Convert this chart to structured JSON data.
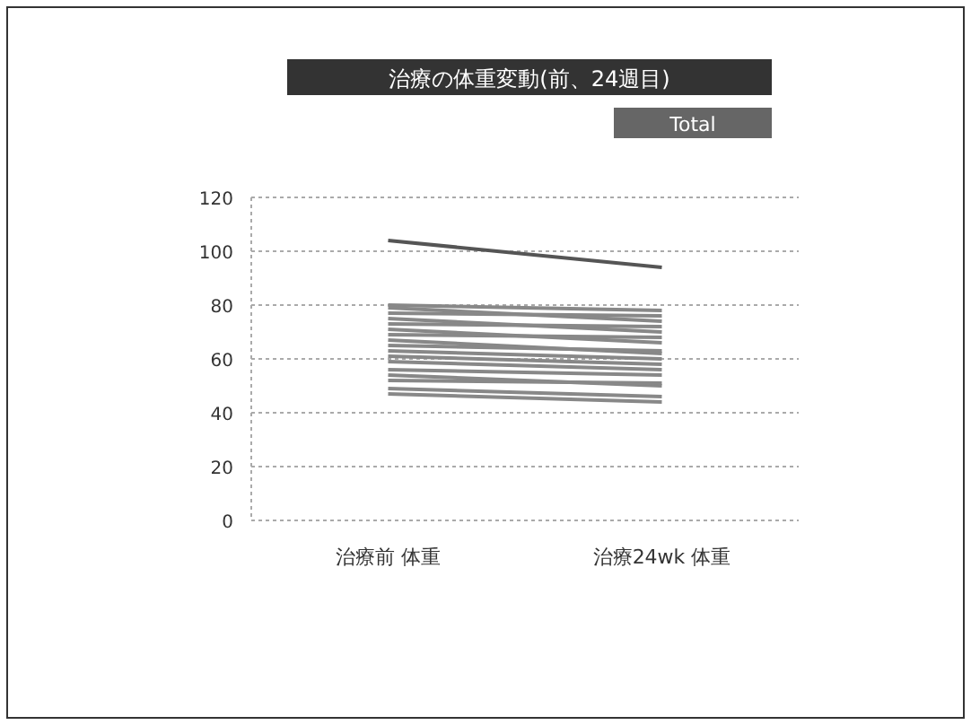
{
  "chart_data": {
    "type": "line",
    "title": "治療の体重変動(前、24週目)",
    "annotations": [
      "Total"
    ],
    "categories": [
      "治療前 体重",
      "治療24wk 体重"
    ],
    "ylim": [
      0,
      120
    ],
    "yticks": [
      0,
      20,
      40,
      60,
      80,
      100,
      120
    ],
    "grid": "y",
    "marker": "none",
    "line_style": "solid",
    "series": [
      {
        "color": "#555555",
        "values": [
          104,
          94
        ]
      },
      {
        "color": "#888888",
        "values": [
          80,
          78
        ]
      },
      {
        "color": "#888888",
        "values": [
          79,
          74
        ]
      },
      {
        "color": "#888888",
        "values": [
          77,
          76
        ]
      },
      {
        "color": "#888888",
        "values": [
          75,
          70
        ]
      },
      {
        "color": "#888888",
        "values": [
          73,
          72
        ]
      },
      {
        "color": "#888888",
        "values": [
          71,
          66
        ]
      },
      {
        "color": "#888888",
        "values": [
          69,
          68
        ]
      },
      {
        "color": "#888888",
        "values": [
          67,
          62
        ]
      },
      {
        "color": "#888888",
        "values": [
          65,
          63
        ]
      },
      {
        "color": "#888888",
        "values": [
          63,
          60
        ]
      },
      {
        "color": "#888888",
        "values": [
          61,
          58
        ]
      },
      {
        "color": "#888888",
        "values": [
          59,
          56
        ]
      },
      {
        "color": "#888888",
        "values": [
          56,
          54
        ]
      },
      {
        "color": "#888888",
        "values": [
          54,
          50
        ]
      },
      {
        "color": "#888888",
        "values": [
          52,
          51
        ]
      },
      {
        "color": "#888888",
        "values": [
          49,
          46
        ]
      },
      {
        "color": "#888888",
        "values": [
          47,
          44
        ]
      }
    ]
  }
}
